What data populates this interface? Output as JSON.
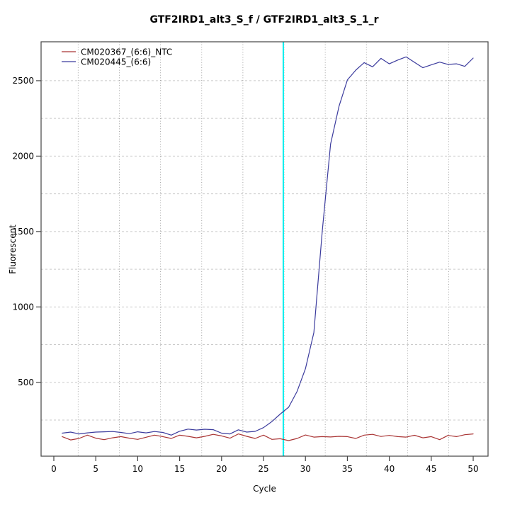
{
  "page": {
    "background": "#ffffff"
  },
  "chart_data": {
    "type": "line",
    "title": "GTF2IRD1_alt3_S_f / GTF2IRD1_alt3_S_1_r",
    "xlabel": "Cycle",
    "ylabel": "Fluorescent",
    "x": [
      1,
      2,
      3,
      4,
      5,
      6,
      7,
      8,
      9,
      10,
      11,
      12,
      13,
      14,
      15,
      16,
      17,
      18,
      19,
      20,
      21,
      22,
      23,
      24,
      25,
      26,
      27,
      28,
      29,
      30,
      31,
      32,
      33,
      34,
      35,
      36,
      37,
      38,
      39,
      40,
      41,
      42,
      43,
      44,
      45,
      46,
      47,
      48,
      49,
      50
    ],
    "series": [
      {
        "name": "CM020367_(6:6)_NTC",
        "color": "#a93434",
        "values": [
          140,
          118,
          128,
          150,
          130,
          120,
          132,
          140,
          130,
          122,
          136,
          150,
          140,
          128,
          150,
          142,
          132,
          142,
          155,
          145,
          130,
          158,
          142,
          128,
          150,
          122,
          126,
          114,
          128,
          151,
          137,
          140,
          138,
          142,
          140,
          128,
          150,
          155,
          141,
          148,
          140,
          137,
          149,
          132,
          140,
          120,
          148,
          140,
          153,
          158
        ]
      },
      {
        "name": "CM020445_(6:6)",
        "color": "#3b3b9d",
        "values": [
          163,
          170,
          158,
          165,
          170,
          172,
          174,
          168,
          160,
          172,
          165,
          174,
          168,
          150,
          176,
          190,
          184,
          189,
          186,
          163,
          158,
          185,
          170,
          175,
          200,
          240,
          290,
          335,
          440,
          590,
          830,
          1500,
          2080,
          2330,
          2505,
          2570,
          2620,
          2592,
          2648,
          2612,
          2637,
          2658,
          2622,
          2586,
          2605,
          2623,
          2608,
          2612,
          2595,
          2650
        ]
      }
    ],
    "xlim": [
      -1.52,
      51.77
    ],
    "ylim": [
      10.5,
      2758
    ],
    "x_ticks": [
      0,
      5,
      10,
      15,
      20,
      25,
      30,
      35,
      40,
      45,
      50
    ],
    "y_ticks": [
      500,
      1000,
      1500,
      2000,
      2500
    ],
    "grid": {
      "v_lines": [
        2.9,
        7.81,
        12.72,
        17.63,
        22.54,
        27.45,
        32.36,
        37.27,
        42.18,
        47.09
      ],
      "h_lines": [
        250,
        500,
        750,
        1000,
        1250,
        1500,
        1750,
        2000,
        2250,
        2500
      ],
      "h_color": "#c9c9c9",
      "v_color": "#9a9a9a"
    },
    "threshold_line": {
      "x": 27.36,
      "color": "#00eeee"
    },
    "legend_position": "top-left",
    "axis_color": "#444444",
    "line_width": 1.2
  }
}
